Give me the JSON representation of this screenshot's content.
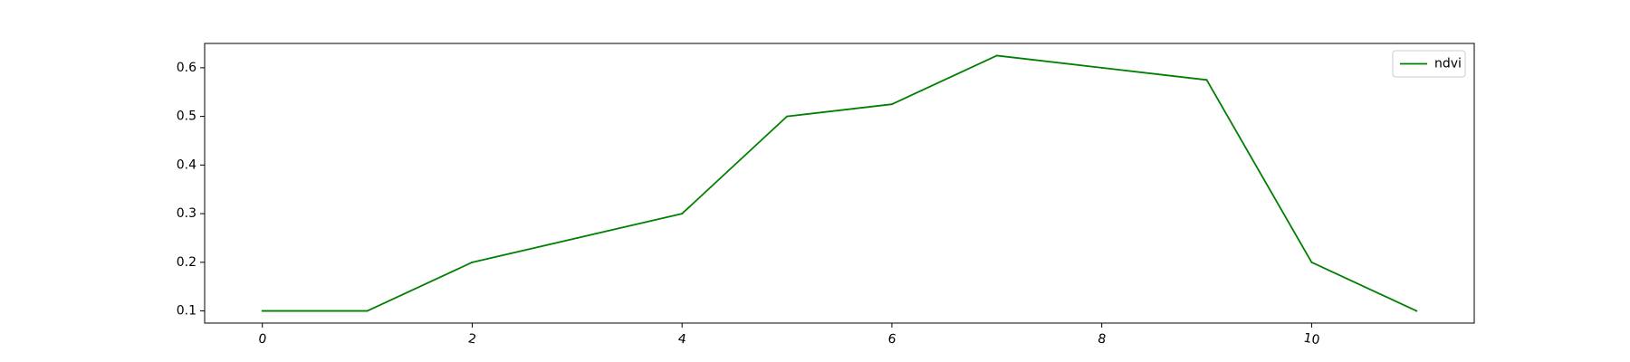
{
  "chart_data": {
    "type": "line",
    "title": "",
    "xlabel": "",
    "ylabel": "",
    "x": [
      0,
      1,
      2,
      3,
      4,
      5,
      6,
      7,
      8,
      9,
      10,
      11
    ],
    "series": [
      {
        "name": "ndvi",
        "color": "#008000",
        "values": [
          0.1,
          0.1,
          0.2,
          0.25,
          0.3,
          0.5,
          0.525,
          0.625,
          0.6,
          0.575,
          0.2,
          0.1
        ]
      }
    ],
    "xlim": [
      -0.55,
      11.55
    ],
    "ylim": [
      0.075,
      0.65
    ],
    "x_ticks": [
      0,
      2,
      4,
      6,
      8,
      10
    ],
    "x_tick_labels": [
      "0",
      "2",
      "4",
      "6",
      "8",
      "10"
    ],
    "y_ticks": [
      0.1,
      0.2,
      0.3,
      0.4,
      0.5,
      0.6
    ],
    "y_tick_labels": [
      "0.1",
      "0.2",
      "0.3",
      "0.4",
      "0.5",
      "0.6"
    ],
    "x_tick_rotation_deg": 10,
    "grid": false,
    "legend": {
      "position": "top-right",
      "entries": [
        "ndvi"
      ]
    }
  }
}
